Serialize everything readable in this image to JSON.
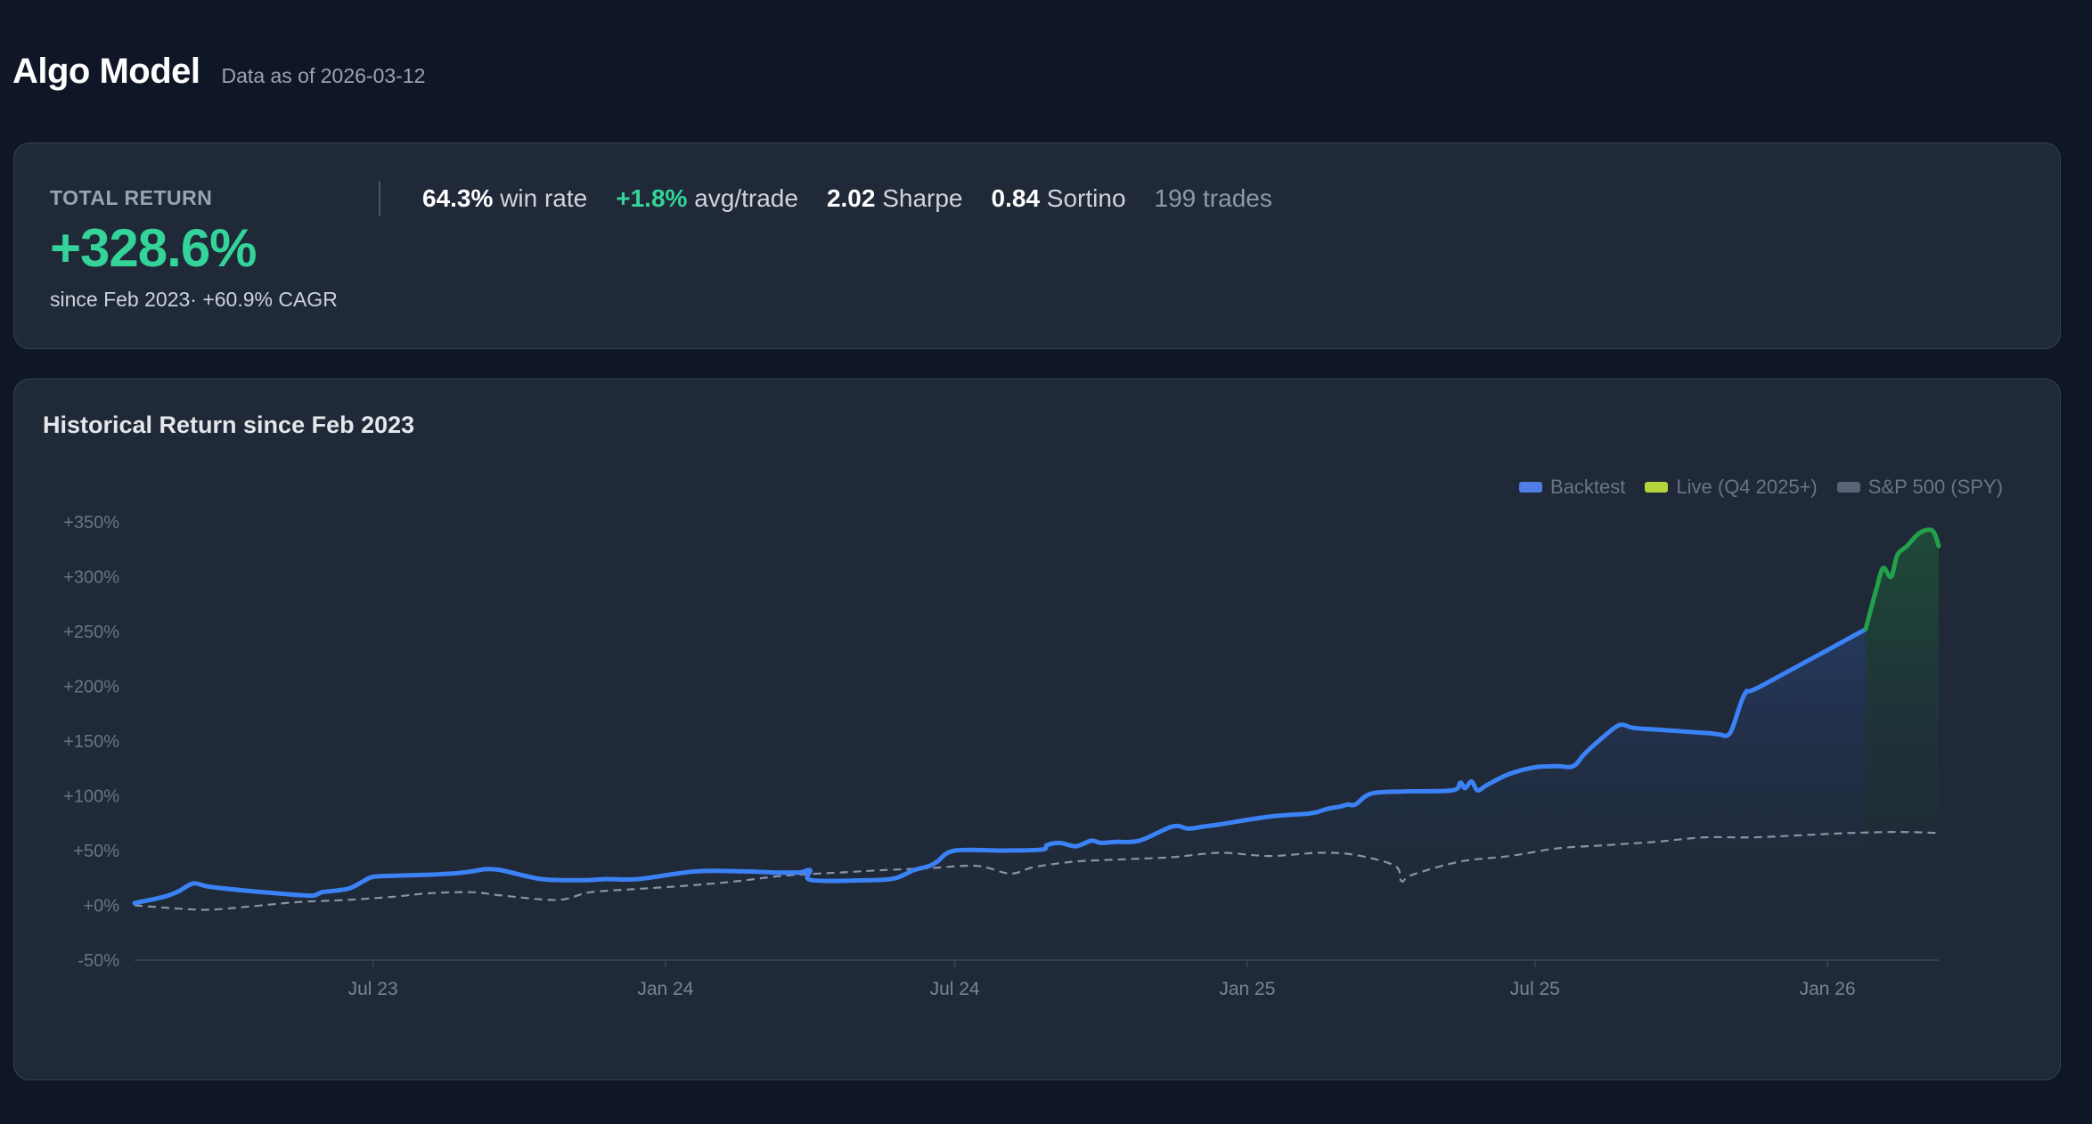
{
  "header": {
    "title": "Algo Model",
    "data_as_of": "Data as of 2026-03-12"
  },
  "stats": {
    "total_label": "TOTAL RETURN",
    "total_value": "+328.6%",
    "total_sub": "since Feb 2023· +60.9% CAGR",
    "metrics": [
      {
        "value": "64.3%",
        "label": "win rate"
      },
      {
        "value": "+1.8%",
        "label": "avg/trade"
      },
      {
        "value": "2.02",
        "label": "Sharpe"
      },
      {
        "value": "0.84",
        "label": "Sortino"
      },
      {
        "value": "199 trades",
        "label": ""
      }
    ]
  },
  "chart": {
    "title": "Historical Return since Feb 2023",
    "legend": [
      {
        "label": "Backtest",
        "color": "#4f7fe6"
      },
      {
        "label": "Live (Q4 2025+)",
        "color": "#b5d33a"
      },
      {
        "label": "S&P 500 (SPY)",
        "color": "#5b6477"
      }
    ]
  },
  "chart_data": {
    "type": "line",
    "y_ticks": [
      "+350%",
      "+300%",
      "+250%",
      "+200%",
      "+150%",
      "+100%",
      "+50%",
      "+0%",
      "-50%"
    ],
    "y_tick_values": [
      350,
      300,
      250,
      200,
      150,
      100,
      50,
      0,
      -50
    ],
    "ylim": [
      -50,
      350
    ],
    "x_ticks": [
      "Jul 23",
      "Jan 24",
      "Jul 24",
      "Jan 25",
      "Jul 25",
      "Jan 26"
    ],
    "x_tick_dates": [
      "2023-07-01",
      "2024-01-01",
      "2024-07-01",
      "2025-01-01",
      "2025-07-01",
      "2026-01-01"
    ],
    "xlim": [
      "2023-02-01",
      "2026-03-12"
    ],
    "colors": {
      "backtest": "#3b82f6",
      "live": "#22a04b",
      "spy": "#8a93a3"
    },
    "series": [
      {
        "name": "Backtest",
        "x": [
          "2023-02-01",
          "2023-02-20",
          "2023-03-01",
          "2023-03-10",
          "2023-03-20",
          "2023-04-15",
          "2023-05-10",
          "2023-05-20",
          "2023-05-25",
          "2023-05-30",
          "2023-06-05",
          "2023-06-15",
          "2023-06-20",
          "2023-06-25",
          "2023-07-01",
          "2023-07-15",
          "2023-08-05",
          "2023-08-20",
          "2023-09-01",
          "2023-09-10",
          "2023-09-20",
          "2023-10-15",
          "2023-11-10",
          "2023-11-25",
          "2023-12-15",
          "2024-01-20",
          "2024-02-20",
          "2024-03-10",
          "2024-03-25",
          "2024-04-01",
          "2024-04-02",
          "2024-05-10",
          "2024-05-25",
          "2024-06-05",
          "2024-06-15",
          "2024-06-20",
          "2024-07-01",
          "2024-08-01",
          "2024-08-25",
          "2024-08-28",
          "2024-09-05",
          "2024-09-15",
          "2024-09-25",
          "2024-10-01",
          "2024-10-10",
          "2024-10-25",
          "2024-11-15",
          "2024-11-25",
          "2024-12-05",
          "2024-12-15",
          "2025-01-15",
          "2025-02-10",
          "2025-02-20",
          "2025-02-28",
          "2025-03-05",
          "2025-03-10",
          "2025-03-20",
          "2025-04-10",
          "2025-05-10",
          "2025-05-15",
          "2025-05-18",
          "2025-05-22",
          "2025-05-26",
          "2025-06-01",
          "2025-06-15",
          "2025-07-01",
          "2025-07-15",
          "2025-07-25",
          "2025-08-01",
          "2025-08-10",
          "2025-08-20",
          "2025-08-25",
          "2025-09-01",
          "2025-09-20",
          "2025-10-10",
          "2025-10-20",
          "2025-10-25",
          "2025-11-01",
          "2025-11-10",
          "2025-11-20",
          "2026-01-25"
        ],
        "y": [
          2,
          8,
          13,
          20,
          17,
          13,
          10,
          9,
          9,
          12,
          13,
          15,
          18,
          22,
          26,
          27,
          28,
          29,
          31,
          33,
          32,
          24,
          23,
          24,
          24,
          31,
          31,
          30,
          30,
          32,
          23,
          23,
          25,
          32,
          36,
          40,
          50,
          50,
          51,
          55,
          57,
          54,
          59,
          57,
          58,
          59,
          72,
          70,
          72,
          74,
          81,
          84,
          88,
          90,
          92,
          92,
          102,
          104,
          105,
          112,
          107,
          113,
          105,
          110,
          120,
          126,
          127,
          127,
          138,
          150,
          162,
          165,
          162,
          160,
          158,
          157,
          156,
          158,
          193,
          200,
          252
        ]
      },
      {
        "name": "Live (Q4 2025+)",
        "x": [
          "2026-01-25",
          "2026-02-01",
          "2026-02-05",
          "2026-02-10",
          "2026-02-14",
          "2026-02-20",
          "2026-02-28",
          "2026-03-08",
          "2026-03-12"
        ],
        "y": [
          252,
          290,
          308,
          300,
          320,
          328,
          340,
          342,
          328
        ]
      },
      {
        "name": "S&P 500 (SPY)",
        "x": [
          "2023-02-01",
          "2023-03-01",
          "2023-03-20",
          "2023-04-15",
          "2023-05-15",
          "2023-06-15",
          "2023-07-15",
          "2023-08-05",
          "2023-09-01",
          "2023-09-20",
          "2023-10-25",
          "2023-11-15",
          "2023-12-15",
          "2024-01-15",
          "2024-02-15",
          "2024-03-15",
          "2024-04-20",
          "2024-05-15",
          "2024-06-15",
          "2024-07-15",
          "2024-08-05",
          "2024-08-20",
          "2024-09-15",
          "2024-10-15",
          "2024-11-15",
          "2024-12-15",
          "2025-01-15",
          "2025-02-15",
          "2025-03-10",
          "2025-04-04",
          "2025-04-08",
          "2025-04-15",
          "2025-05-15",
          "2025-06-15",
          "2025-07-15",
          "2025-08-15",
          "2025-09-15",
          "2025-10-15",
          "2025-11-15",
          "2025-12-15",
          "2026-01-15",
          "2026-02-15",
          "2026-03-12"
        ],
        "y": [
          0,
          -3,
          -4,
          -1,
          3,
          5,
          8,
          11,
          12,
          9,
          5,
          12,
          15,
          18,
          22,
          27,
          30,
          32,
          34,
          36,
          29,
          35,
          40,
          42,
          44,
          48,
          45,
          48,
          46,
          36,
          22,
          28,
          40,
          45,
          52,
          55,
          58,
          62,
          62,
          64,
          66,
          67,
          66
        ]
      }
    ]
  }
}
